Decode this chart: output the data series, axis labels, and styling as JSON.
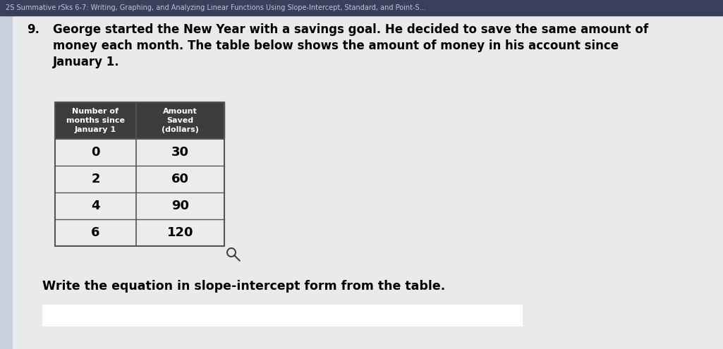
{
  "header_text": "2S Summative rSks 6-7: Writing, Graphing, and Analyzing Linear Functions Using Slope-Intercept, Standard, and Point-S...",
  "header_bg": "#3a3f5c",
  "header_text_color": "#c0c8d8",
  "bg_color": "#c8d0dc",
  "content_bg": "#dde2e8",
  "question_number": "9.",
  "question_text_line1": "George started the New Year with a savings goal. He decided to save the same amount of",
  "question_text_line2": "money each month. The table below shows the amount of money in his account since",
  "question_text_line3": "January 1.",
  "col1_header_line1": "Number of",
  "col1_header_line2": "months since",
  "col1_header_line3": "January 1",
  "col2_header_line1": "Amount",
  "col2_header_line2": "Saved",
  "col2_header_line3": "(dollars)",
  "table_header_bg": "#3d3d3d",
  "table_header_text_color": "#ffffff",
  "table_row_bg_light": "#eaecee",
  "table_row_bg_dark": "#d8dadc",
  "table_border_color": "#555555",
  "x_values": [
    0,
    2,
    4,
    6
  ],
  "y_values": [
    30,
    60,
    90,
    120
  ],
  "write_equation_text": "Write the equation in slope-intercept form from the table.",
  "answer_box_bg": "#ffffff",
  "answer_box_border": "#999999"
}
